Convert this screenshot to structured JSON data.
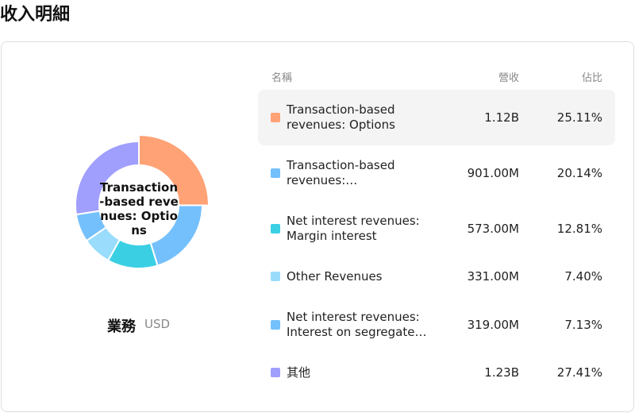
{
  "page_title": "收入明細",
  "chart_data": {
    "type": "pie",
    "segment_label": "業務",
    "currency": "USD",
    "headers": [
      "名稱",
      "營收",
      "佔比"
    ],
    "categories": [
      "Transaction-based revenues: Options",
      "Transaction-based revenues:…",
      "Net interest revenues: Margin interest",
      "Other Revenues",
      "Net interest revenues: Interest on segregate…",
      "其他"
    ],
    "values": [
      25.11,
      20.14,
      12.81,
      7.4,
      7.13,
      27.41
    ],
    "value_labels": [
      "25.11%",
      "20.14%",
      "12.81%",
      "7.40%",
      "7.13%",
      "27.41%"
    ],
    "revenue_labels": [
      "1.12B",
      "901.00M",
      "573.00M",
      "331.00M",
      "319.00M",
      "1.23B"
    ],
    "colors": [
      "#ffa275",
      "#74c0fc",
      "#3bcfe4",
      "#99dcfc",
      "#74c0fc",
      "#a09ffd"
    ]
  }
}
